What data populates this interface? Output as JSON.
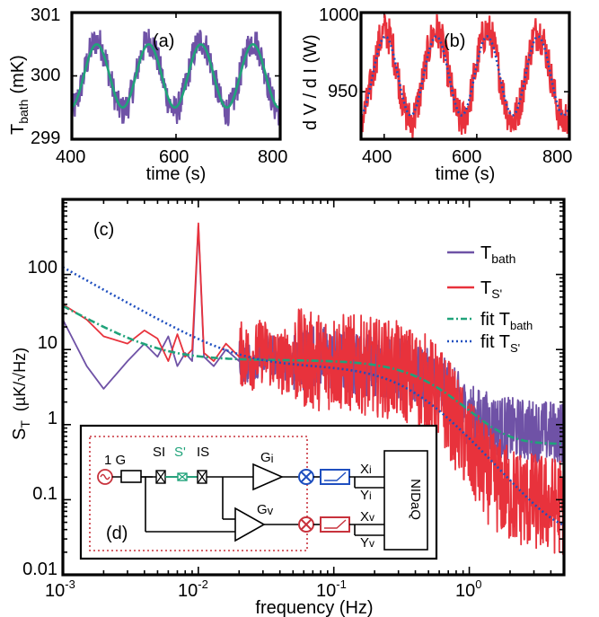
{
  "chart_data": [
    {
      "panel": "(a)",
      "type": "line",
      "xlabel": "time (s)",
      "ylabel_main": "T",
      "ylabel_sub": "bath",
      "ylabel_unit": "(mK)",
      "xlim": [
        400,
        800
      ],
      "ylim": [
        299,
        301
      ],
      "xticks": [
        "400",
        "600",
        "800"
      ],
      "yticks": [
        "299",
        "300",
        "301"
      ],
      "grid": false,
      "series": [
        {
          "color": "#6f52a6",
          "period_s": 100,
          "mean": 300,
          "amplitude": 0.55,
          "style": "noisy"
        },
        {
          "color": "#20a37a",
          "period_s": 100,
          "mean": 300,
          "amplitude": 0.5,
          "style": "fit"
        }
      ]
    },
    {
      "panel": "(b)",
      "type": "line",
      "xlabel": "time (s)",
      "ylabel_main": "d V / d I (W)",
      "xlim": [
        350,
        800
      ],
      "ylim": [
        920,
        1000
      ],
      "xticks": [
        "400",
        "600",
        "800"
      ],
      "yticks": [
        "950",
        "1000"
      ],
      "grid": false,
      "series": [
        {
          "color": "#e8323c",
          "period_s": 110,
          "mean": 960,
          "amplitude": 28,
          "style": "noisy"
        },
        {
          "color": "#1f4fbf",
          "period_s": 110,
          "mean": 960,
          "amplitude": 25,
          "style": "fit-dotted"
        }
      ]
    },
    {
      "panel": "(c)",
      "type": "line",
      "scale": "log-log",
      "xlabel": "frequency (Hz)",
      "ylabel_main": "S",
      "ylabel_sub": "T",
      "ylabel_unit": "(µK/√Hz)",
      "xlim": [
        0.001,
        5
      ],
      "ylim": [
        0.01,
        1000
      ],
      "xticks": [
        {
          "base": "10",
          "exp": "-3"
        },
        {
          "base": "10",
          "exp": "-2"
        },
        {
          "base": "10",
          "exp": "-1"
        },
        {
          "base": "10",
          "exp": "0"
        }
      ],
      "yticks": [
        "0.01",
        "0.1",
        "1",
        "10",
        "100"
      ],
      "legend_position": "right",
      "legend": [
        {
          "main": "T",
          "sub": "bath",
          "color": "#6f52a6",
          "style": "solid"
        },
        {
          "main": "T",
          "sub": "S'",
          "color": "#e8323c",
          "style": "solid"
        },
        {
          "main": "fit T",
          "sub": "bath",
          "color": "#20a37a",
          "style": "dash-dot"
        },
        {
          "main": "fit T",
          "sub": "S'",
          "color": "#1f4fbf",
          "style": "dotted"
        }
      ],
      "series": [
        {
          "name": "Tbath",
          "color": "#6f52a6",
          "x": [
            0.001,
            0.0015,
            0.002,
            0.003,
            0.004,
            0.005,
            0.006,
            0.007,
            0.008,
            0.009,
            0.01,
            0.011,
            0.013,
            0.016,
            0.02,
            0.025,
            0.03,
            0.04,
            0.05,
            0.07,
            0.1,
            0.15,
            0.2,
            0.3,
            0.5,
            0.7,
            1,
            1.5,
            2,
            3,
            5
          ],
          "y": [
            25,
            6,
            3,
            7,
            12,
            8,
            15,
            6,
            9,
            7,
            450,
            8,
            6,
            10,
            7,
            6,
            9,
            7,
            6,
            8,
            6.5,
            6,
            5.5,
            5,
            3.5,
            2.5,
            1.2,
            0.9,
            0.8,
            0.75,
            0.7
          ]
        },
        {
          "name": "TS'",
          "color": "#e8323c",
          "x": [
            0.001,
            0.0015,
            0.002,
            0.003,
            0.004,
            0.005,
            0.006,
            0.007,
            0.008,
            0.009,
            0.01,
            0.011,
            0.013,
            0.016,
            0.02,
            0.025,
            0.03,
            0.04,
            0.05,
            0.07,
            0.1,
            0.15,
            0.2,
            0.3,
            0.5,
            0.7,
            1,
            1.5,
            2,
            3,
            5
          ],
          "y": [
            40,
            25,
            15,
            12,
            18,
            14,
            7,
            16,
            8,
            10,
            480,
            9,
            7,
            12,
            8,
            7,
            9,
            6,
            7,
            6,
            6,
            5.5,
            5,
            4.5,
            3,
            1.5,
            0.4,
            0.15,
            0.1,
            0.08,
            0.07
          ]
        },
        {
          "name": "fit Tbath",
          "color": "#20a37a",
          "model": {
            "floor": 0.55,
            "plateau": 7.2,
            "low_f_rise": 0.003,
            "knee_hz": 0.5
          }
        },
        {
          "name": "fit TS'",
          "color": "#1f4fbf",
          "model": {
            "floor": 0.035,
            "plateau": 6.0,
            "low_f_rise": 0.012,
            "knee_hz": 0.35
          }
        }
      ]
    }
  ],
  "inset": {
    "panel_label": "(d)",
    "resistor_label": "1 G",
    "si_label": "SI",
    "s_prime_label": "S'",
    "is_label": "IS",
    "gi_main": "G",
    "gi_sub": "i",
    "gv_main": "G",
    "gv_sub": "v",
    "xi_main": "X",
    "xi_sub": "i",
    "yi_main": "Y",
    "yi_sub": "i",
    "xv_main": "X",
    "xv_sub": "v",
    "yv_main": "Y",
    "yv_sub": "v",
    "daq_label": "NIDaQ"
  }
}
